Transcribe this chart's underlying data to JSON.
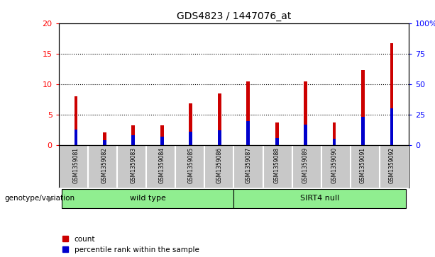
{
  "title": "GDS4823 / 1447076_at",
  "samples": [
    "GSM1359081",
    "GSM1359082",
    "GSM1359083",
    "GSM1359084",
    "GSM1359085",
    "GSM1359086",
    "GSM1359087",
    "GSM1359088",
    "GSM1359089",
    "GSM1359090",
    "GSM1359091",
    "GSM1359092"
  ],
  "counts": [
    8.0,
    2.1,
    3.3,
    3.3,
    6.8,
    8.5,
    10.5,
    3.7,
    10.5,
    3.7,
    12.3,
    16.7
  ],
  "percentile_ranks": [
    13,
    4,
    8,
    7,
    11,
    12,
    20,
    6,
    17,
    5,
    23,
    30
  ],
  "groups": [
    {
      "label": "wild type",
      "start": 0,
      "end": 6,
      "color": "#90EE90"
    },
    {
      "label": "SIRT4 null",
      "start": 6,
      "end": 12,
      "color": "#90EE90"
    }
  ],
  "group_label": "genotype/variation",
  "left_ylim": [
    0,
    20
  ],
  "right_ylim": [
    0,
    100
  ],
  "left_yticks": [
    0,
    5,
    10,
    15,
    20
  ],
  "right_yticks": [
    0,
    25,
    50,
    75,
    100
  ],
  "right_yticklabels": [
    "0",
    "25",
    "50",
    "75",
    "100%"
  ],
  "bar_color": "#CC0000",
  "percentile_color": "#0000CC",
  "bg_color": "#C8C8C8",
  "legend_count_label": "count",
  "legend_pct_label": "percentile rank within the sample",
  "bar_width": 0.12,
  "blue_bar_width": 0.12
}
